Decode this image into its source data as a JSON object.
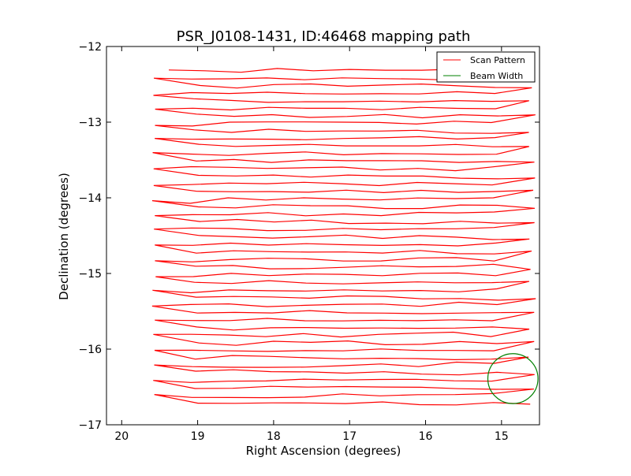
{
  "chart_data": {
    "type": "line",
    "title": "PSR_J0108-1431, ID:46468 mapping path",
    "xlabel": "Right Ascension (degrees)",
    "ylabel": "Declination (degrees)",
    "xlim": [
      20.2,
      14.5
    ],
    "ylim": [
      -17,
      -12
    ],
    "x_ticks": [
      20,
      19,
      18,
      17,
      16,
      15
    ],
    "y_ticks": [
      -12,
      -13,
      -14,
      -15,
      -16,
      -17
    ],
    "x_tick_labels": [
      "20",
      "19",
      "18",
      "17",
      "16",
      "15"
    ],
    "y_tick_labels": [
      "−12",
      "−13",
      "−14",
      "−15",
      "−16",
      "−17"
    ],
    "grid": false,
    "legend_position": "upper-right",
    "series": [
      {
        "name": "Scan Pattern",
        "color": "#ff0000",
        "kind": "raster-scan",
        "ra_start": 19.38,
        "dec_start": -12.31,
        "row_count": 45,
        "row_spacing_deg": 0.1,
        "ra_west_range": [
          19.55,
          19.5
        ],
        "ra_east_range": [
          14.65,
          14.55
        ]
      },
      {
        "name": "Beam Width",
        "color": "#008000",
        "kind": "circle",
        "center_ra": 14.85,
        "center_dec": -16.39,
        "radius_deg": 0.33
      }
    ]
  }
}
